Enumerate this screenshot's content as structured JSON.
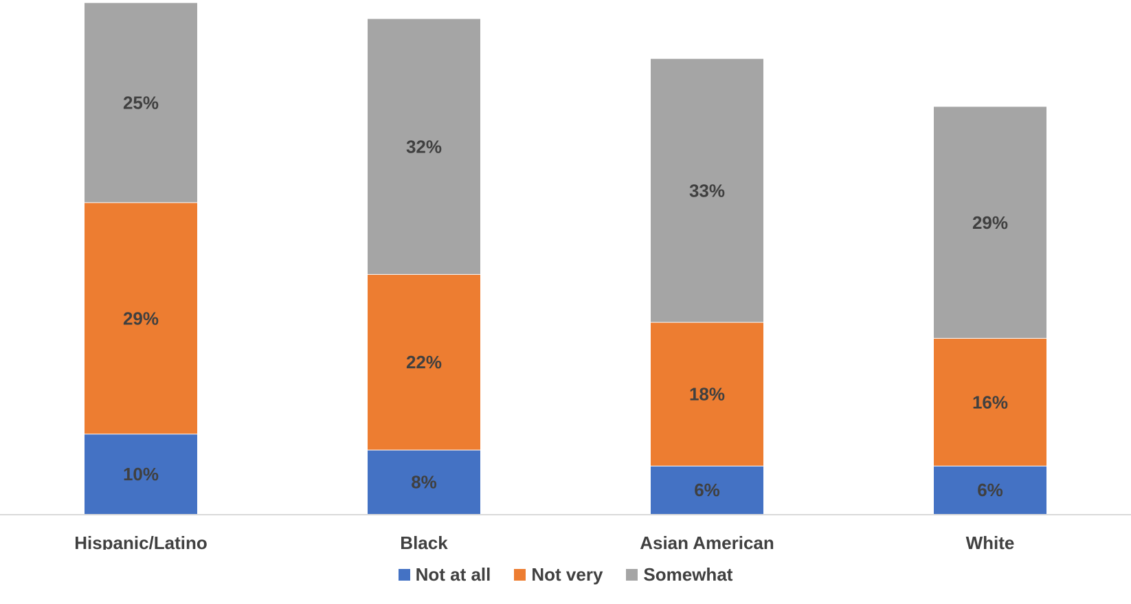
{
  "chart_data": {
    "type": "bar",
    "stacked": true,
    "categories": [
      "Hispanic/Latino",
      "Black",
      "Asian American",
      "White"
    ],
    "series": [
      {
        "name": "Not at all",
        "color": "#4472C4",
        "values": [
          10,
          8,
          6,
          6
        ],
        "labels": [
          "10%",
          "8%",
          "6%",
          "6%"
        ]
      },
      {
        "name": "Not very",
        "color": "#ED7D31",
        "values": [
          29,
          22,
          18,
          16
        ],
        "labels": [
          "29%",
          "22%",
          "18%",
          "16%"
        ]
      },
      {
        "name": "Somewhat",
        "color": "#A5A5A5",
        "values": [
          25,
          32,
          33,
          29
        ],
        "labels": [
          "25%",
          "32%",
          "33%",
          "29%"
        ]
      }
    ],
    "ylim": [
      0,
      64
    ],
    "grid": false,
    "legend_position": "bottom"
  }
}
